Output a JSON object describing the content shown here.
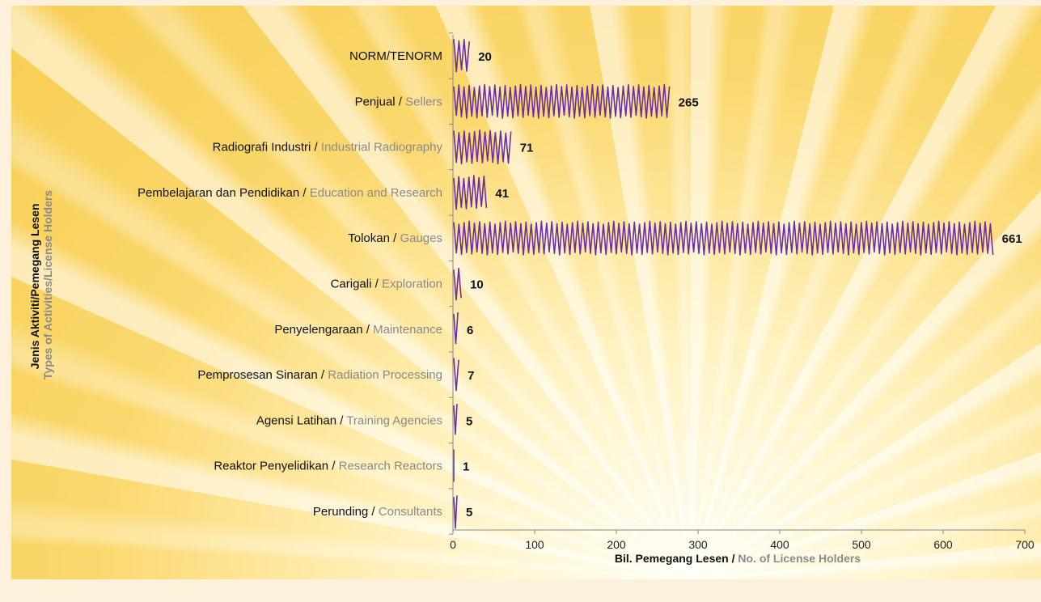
{
  "colors": {
    "bar": "#6b2fa0",
    "english_text": "#8a8a8a"
  },
  "chart_data": {
    "type": "bar",
    "orientation": "horizontal",
    "categories": [
      {
        "ms": "NORM/TENORM",
        "en": ""
      },
      {
        "ms": "Penjual",
        "en": "Sellers"
      },
      {
        "ms": "Radiografi Industri",
        "en": "Industrial Radiography"
      },
      {
        "ms": "Pembelajaran dan Pendidikan",
        "en": "Education and Research"
      },
      {
        "ms": "Tolokan",
        "en": "Gauges"
      },
      {
        "ms": "Carigali",
        "en": "Exploration"
      },
      {
        "ms": "Penyelengaraan",
        "en": "Maintenance"
      },
      {
        "ms": "Pemprosesan Sinaran",
        "en": "Radiation Processing"
      },
      {
        "ms": "Agensi Latihan",
        "en": "Training Agencies"
      },
      {
        "ms": "Reaktor Penyelidikan",
        "en": "Research Reactors"
      },
      {
        "ms": "Perunding",
        "en": "Consultants"
      }
    ],
    "values": [
      20,
      265,
      71,
      41,
      661,
      10,
      6,
      7,
      5,
      1,
      5
    ],
    "xlim": [
      0,
      700
    ],
    "xticks": [
      0,
      100,
      200,
      300,
      400,
      500,
      600,
      700
    ],
    "xlabel": {
      "ms": "Bil. Pemegang Lesen",
      "en": "No. of License Holders"
    },
    "ylabel": {
      "ms": "Jenis Aktiviti/Pemegang Lesen",
      "en": "Types of Activities/License Holders"
    },
    "grid": false,
    "bar_style": "zigzag"
  }
}
